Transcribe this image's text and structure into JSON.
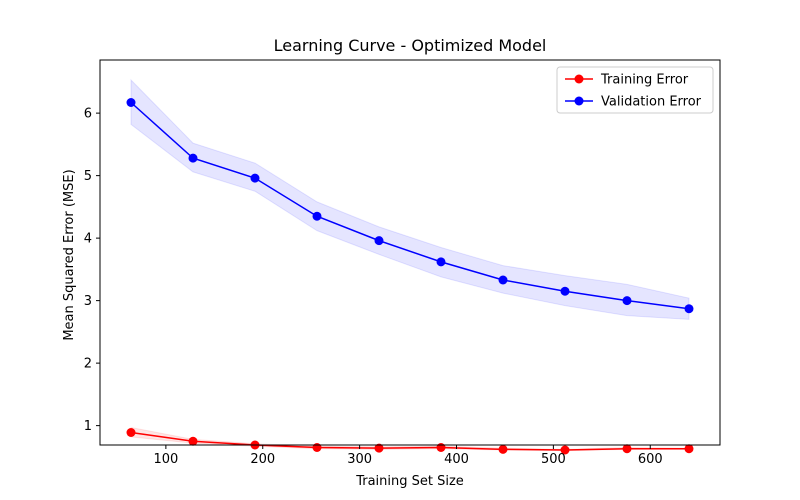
{
  "chart_data": {
    "type": "line",
    "title": "Learning Curve - Optimized Model",
    "xlabel": "Training Set Size",
    "ylabel": "Mean Squared Error (MSE)",
    "xlim": [
      32,
      672
    ],
    "ylim": [
      0.69,
      6.85
    ],
    "x_ticks": [
      100,
      200,
      300,
      400,
      500,
      600
    ],
    "y_ticks": [
      1,
      2,
      3,
      4,
      5,
      6
    ],
    "x": [
      64,
      128,
      192,
      256,
      320,
      384,
      448,
      512,
      576,
      640
    ],
    "legend_position": "top-right",
    "grid": false,
    "series": [
      {
        "name": "Training Error",
        "color": "#ff0000",
        "values": [
          0.89,
          0.75,
          0.69,
          0.65,
          0.64,
          0.65,
          0.62,
          0.61,
          0.63,
          0.63
        ],
        "band_lower": [
          0.82,
          0.72,
          0.67,
          0.63,
          0.62,
          0.63,
          0.61,
          0.6,
          0.62,
          0.62
        ],
        "band_upper": [
          0.97,
          0.78,
          0.71,
          0.67,
          0.66,
          0.67,
          0.64,
          0.62,
          0.65,
          0.64
        ]
      },
      {
        "name": "Validation Error",
        "color": "#0000ff",
        "values": [
          6.17,
          5.28,
          4.96,
          4.35,
          3.96,
          3.62,
          3.33,
          3.15,
          3.0,
          2.87
        ],
        "band_lower": [
          5.82,
          5.06,
          4.75,
          4.12,
          3.74,
          3.38,
          3.12,
          2.92,
          2.76,
          2.7
        ],
        "band_upper": [
          6.53,
          5.52,
          5.2,
          4.58,
          4.18,
          3.85,
          3.56,
          3.4,
          3.26,
          3.04
        ]
      }
    ]
  }
}
